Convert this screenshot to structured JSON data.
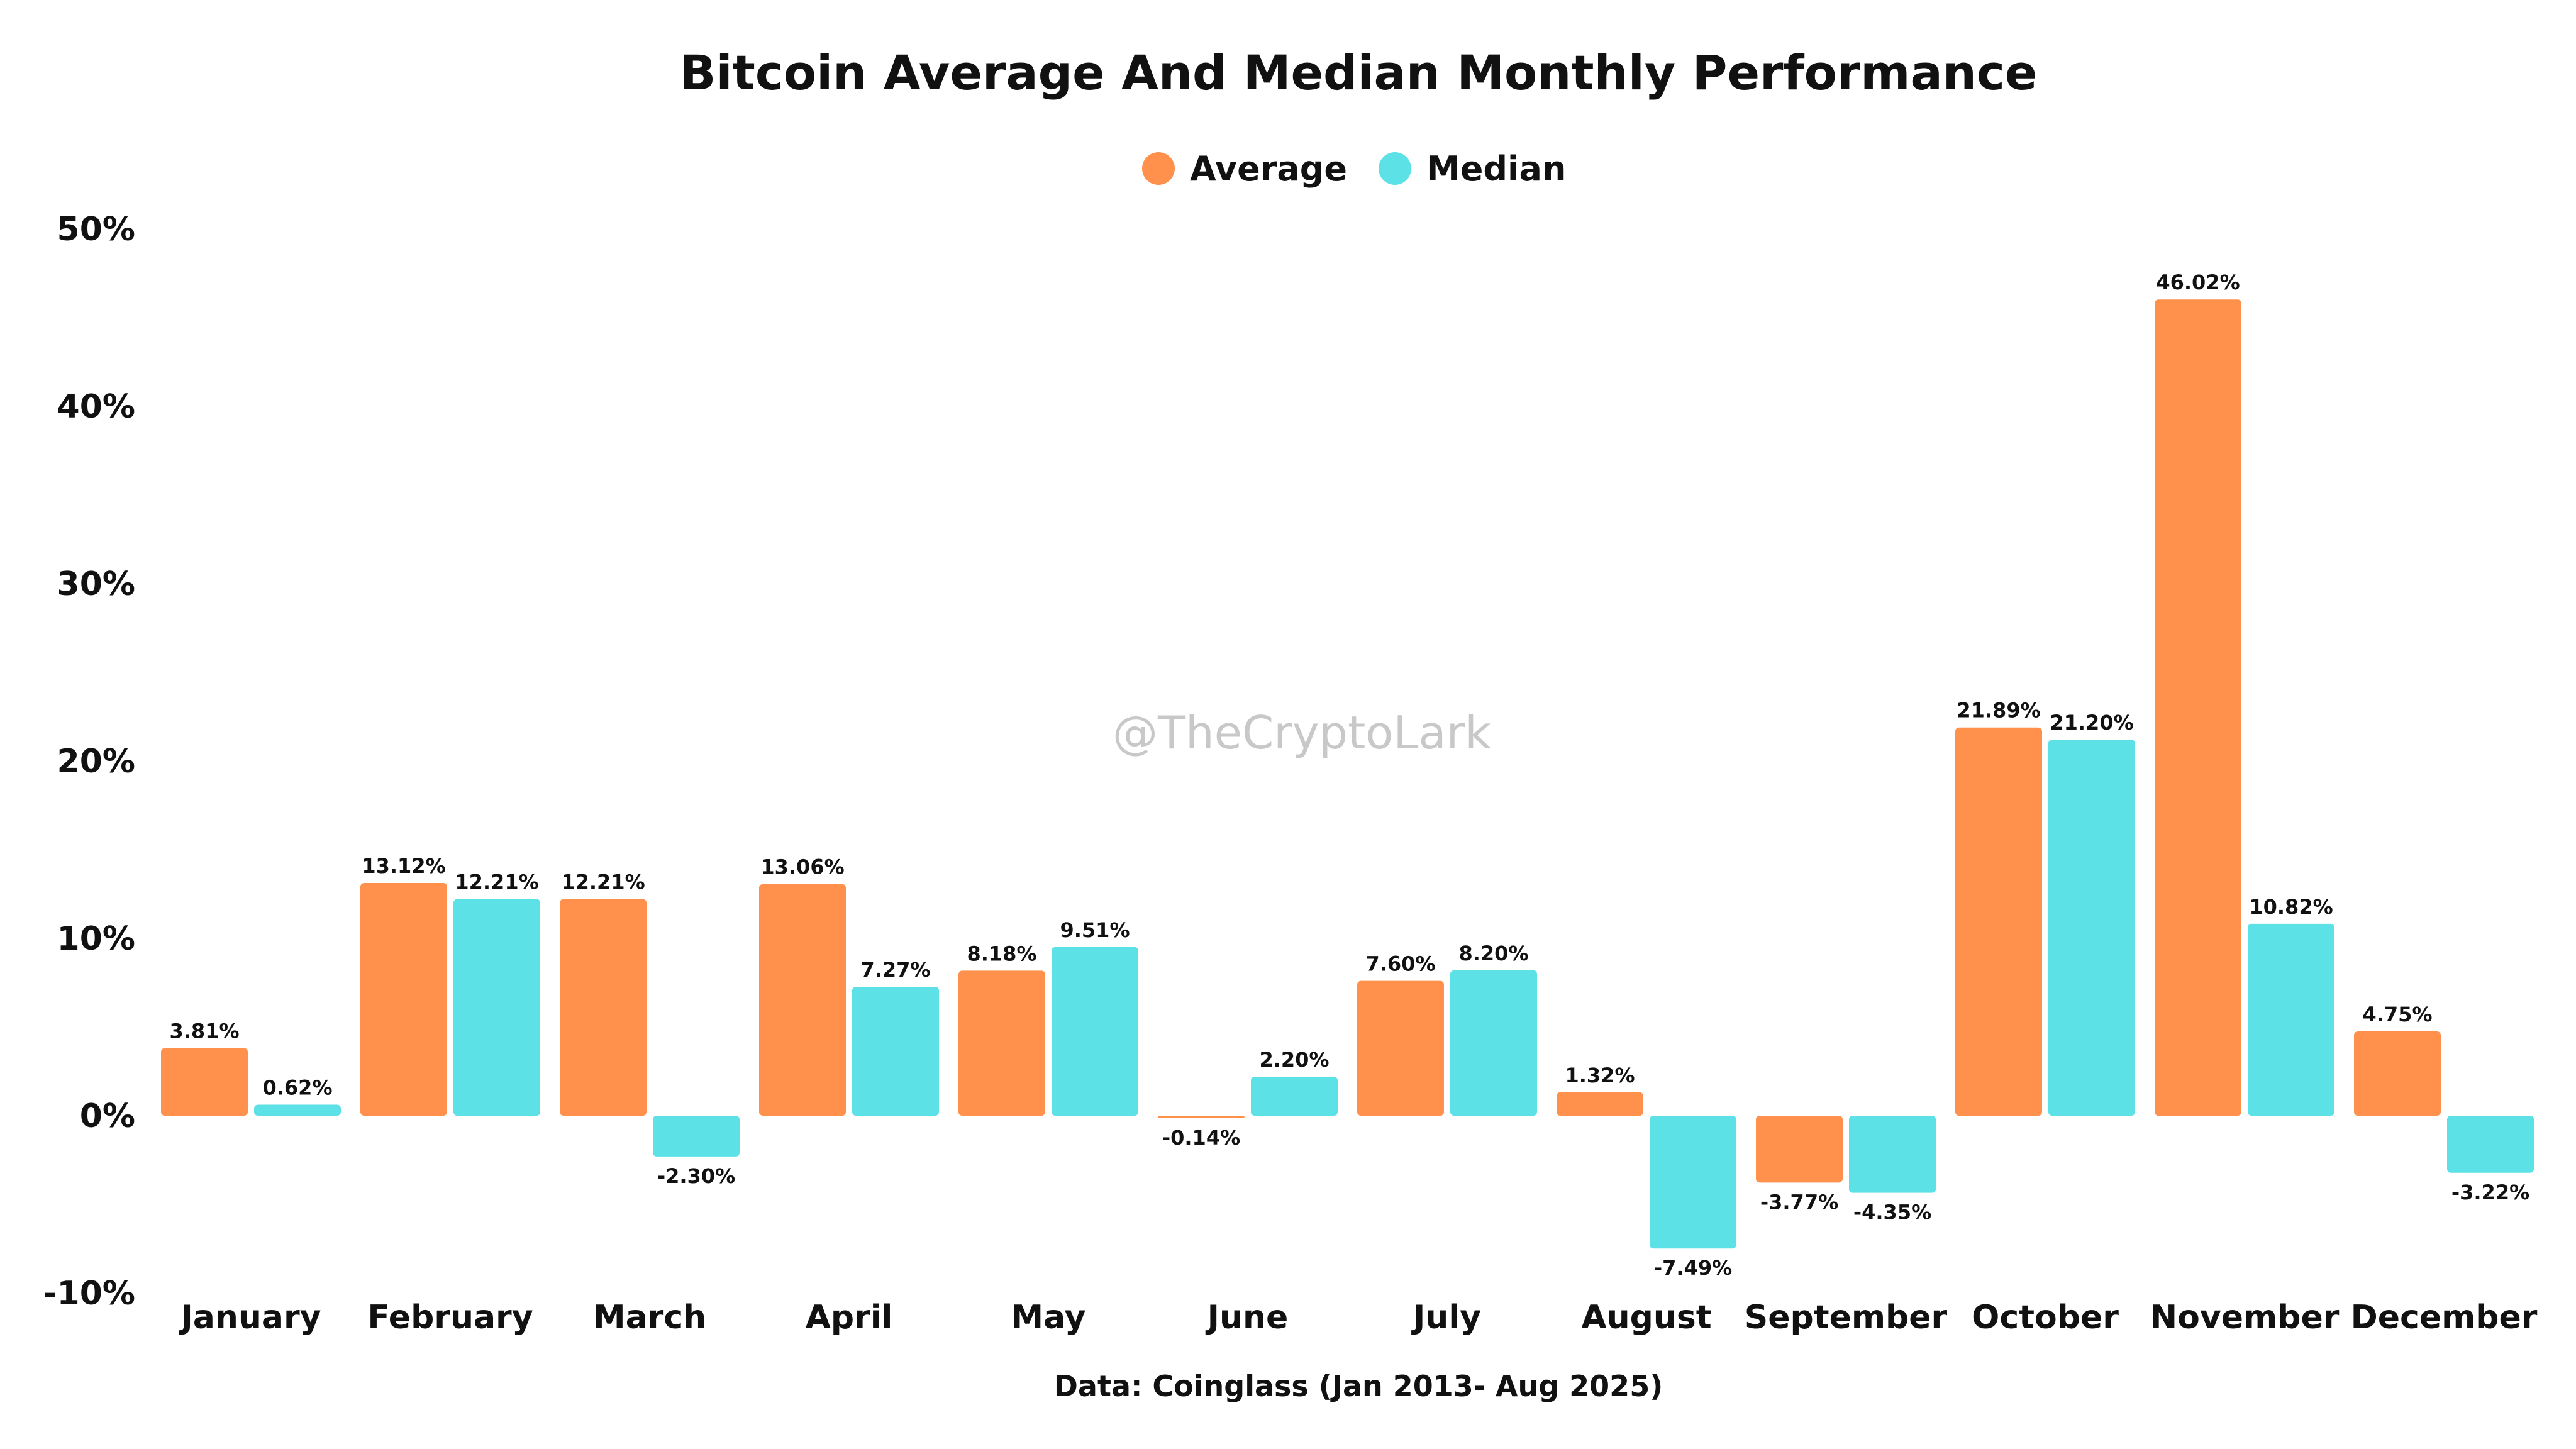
{
  "chart_data": {
    "type": "bar",
    "title": "Bitcoin Average And Median Monthly Performance",
    "xlabel": "",
    "ylabel": "",
    "categories": [
      "January",
      "February",
      "March",
      "April",
      "May",
      "June",
      "July",
      "August",
      "September",
      "October",
      "November",
      "December"
    ],
    "series": [
      {
        "name": "Average",
        "color": "#FF914D",
        "values": [
          3.81,
          13.12,
          12.21,
          13.06,
          8.18,
          -0.14,
          7.6,
          1.32,
          -3.77,
          21.89,
          46.02,
          4.75
        ],
        "labels": [
          "3.81%",
          "13.12%",
          "12.21%",
          "13.06%",
          "8.18%",
          "-0.14%",
          "7.60%",
          "1.32%",
          "-3.77%",
          "21.89%",
          "46.02%",
          "4.75%"
        ]
      },
      {
        "name": "Median",
        "color": "#5CE1E6",
        "values": [
          0.62,
          12.21,
          -2.3,
          7.27,
          9.51,
          2.2,
          8.2,
          -7.49,
          -4.35,
          21.2,
          10.82,
          -3.22
        ],
        "labels": [
          "0.62%",
          "12.21%",
          "-2.30%",
          "7.27%",
          "9.51%",
          "2.20%",
          "8.20%",
          "-7.49%",
          "-4.35%",
          "21.20%",
          "10.82%",
          "-3.22%"
        ]
      }
    ],
    "ylim": [
      -10,
      50
    ],
    "yticks": [
      50,
      40,
      30,
      20,
      10,
      0,
      -10
    ],
    "ytick_labels": [
      "50%",
      "40%",
      "30%",
      "20%",
      "10%",
      "0%",
      "-10%"
    ],
    "grid": false,
    "legend_position": "top-center",
    "watermark": "@TheCryptoLark",
    "source": "Data: Coinglass (Jan 2013- Aug 2025)"
  }
}
